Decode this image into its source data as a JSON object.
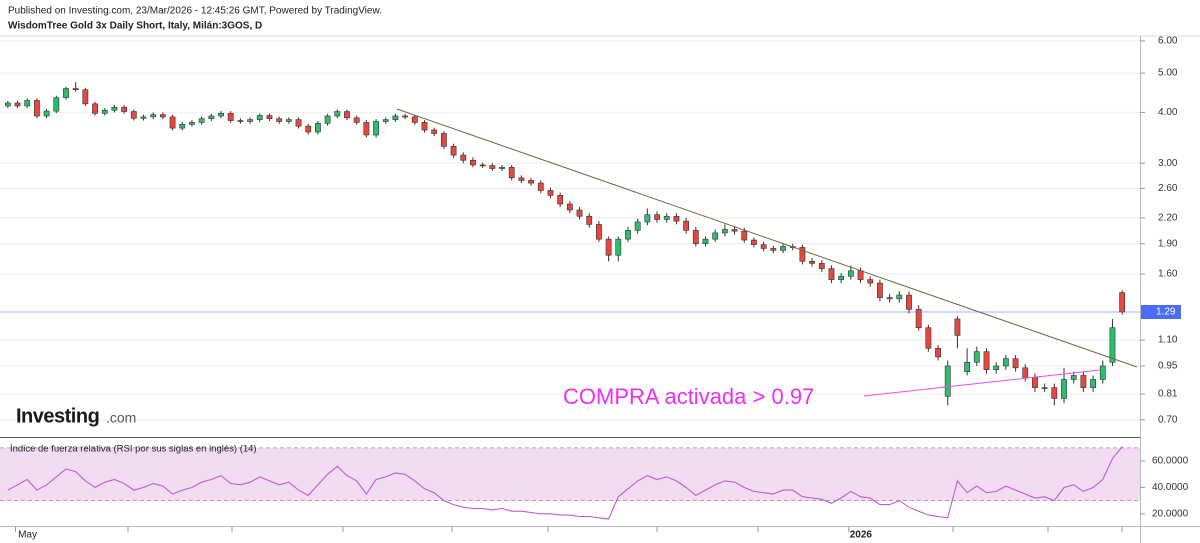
{
  "header": {
    "published": "Published on Investing.com, 23/Mar/2026 - 12:45:26 GMT, Powered by TradingView.",
    "instrument": "WisdomTree Gold 3x Daily Short, Italy, Milán:3GOS, D"
  },
  "logo": {
    "name": "Investing",
    "suffix": ".com"
  },
  "chart_data": [
    {
      "type": "candlestick",
      "categories": [
        null,
        "May",
        null,
        null,
        null,
        null,
        null,
        null,
        null,
        null,
        null,
        null,
        null,
        null,
        null,
        null,
        null,
        null,
        null,
        null,
        null,
        null,
        null,
        null,
        null,
        null,
        null,
        null,
        null,
        null,
        null,
        null,
        null,
        null,
        null,
        null,
        null,
        null,
        null,
        null,
        null,
        null,
        null,
        null,
        null,
        null,
        null,
        null,
        null,
        null,
        null,
        null,
        null,
        null,
        null,
        null,
        null,
        null,
        null,
        null,
        null,
        null,
        null,
        null,
        null,
        null,
        null,
        null,
        null,
        null,
        null,
        null,
        null,
        null,
        null,
        null,
        null,
        null,
        null,
        null,
        null,
        null,
        null,
        null,
        null,
        null,
        null,
        "2026",
        null,
        null,
        null,
        null,
        null,
        null,
        null,
        null,
        null,
        null,
        null,
        null,
        null,
        null,
        null,
        null,
        null,
        null,
        null,
        null,
        null,
        null,
        null,
        null,
        null,
        null,
        null,
        null
      ],
      "open": [
        4.15,
        4.22,
        4.15,
        4.28,
        3.92,
        4.03,
        4.35,
        4.58,
        4.55,
        4.2,
        3.98,
        4.05,
        4.12,
        4.02,
        3.87,
        3.9,
        3.95,
        3.9,
        3.66,
        3.74,
        3.78,
        3.86,
        3.92,
        3.98,
        3.82,
        3.8,
        3.84,
        3.93,
        3.86,
        3.8,
        3.84,
        3.7,
        3.58,
        3.76,
        3.92,
        4.02,
        3.88,
        3.78,
        3.52,
        3.8,
        3.84,
        3.92,
        3.9,
        3.78,
        3.62,
        3.55,
        3.3,
        3.14,
        3.05,
        2.97,
        2.96,
        2.91,
        2.93,
        2.76,
        2.72,
        2.68,
        2.57,
        2.5,
        2.38,
        2.3,
        2.22,
        2.12,
        1.95,
        1.78,
        1.95,
        2.05,
        2.15,
        2.24,
        2.18,
        2.22,
        2.16,
        2.05,
        1.9,
        1.95,
        2.02,
        2.06,
        2.04,
        1.94,
        1.89,
        1.85,
        1.83,
        1.87,
        1.86,
        1.72,
        1.7,
        1.65,
        1.55,
        1.58,
        1.63,
        1.55,
        1.52,
        1.4,
        1.39,
        1.42,
        1.31,
        1.18,
        1.05,
        0.8,
        1.24,
        0.92,
        0.97,
        1.03,
        0.93,
        0.95,
        0.99,
        0.94,
        0.89,
        0.84,
        0.84,
        0.79,
        0.88,
        0.9,
        0.84,
        0.88,
        0.97,
        1.44
      ],
      "high": [
        4.27,
        4.27,
        4.33,
        4.33,
        4.08,
        4.4,
        4.63,
        4.75,
        4.6,
        4.25,
        4.1,
        4.17,
        4.17,
        4.07,
        3.95,
        4.0,
        4.0,
        3.95,
        3.79,
        3.83,
        3.91,
        3.97,
        4.03,
        4.03,
        3.87,
        3.89,
        3.98,
        3.98,
        3.91,
        3.89,
        3.89,
        3.75,
        3.81,
        3.97,
        4.07,
        4.07,
        3.93,
        3.83,
        3.85,
        3.89,
        3.97,
        3.97,
        3.95,
        3.83,
        3.67,
        3.6,
        3.35,
        3.19,
        3.1,
        3.01,
        3.0,
        2.97,
        2.97,
        2.8,
        2.76,
        2.72,
        2.61,
        2.54,
        2.42,
        2.34,
        2.26,
        2.16,
        1.98,
        1.98,
        2.09,
        2.19,
        2.32,
        2.28,
        2.26,
        2.26,
        2.2,
        2.09,
        1.98,
        2.06,
        2.12,
        2.1,
        2.08,
        1.97,
        1.92,
        1.88,
        1.9,
        1.9,
        1.89,
        1.75,
        1.73,
        1.68,
        1.61,
        1.68,
        1.66,
        1.58,
        1.55,
        1.43,
        1.45,
        1.45,
        1.34,
        1.2,
        1.07,
        0.98,
        1.26,
        1.05,
        1.06,
        1.05,
        0.97,
        1.01,
        1.01,
        0.96,
        0.91,
        0.86,
        0.86,
        0.94,
        0.92,
        0.92,
        0.9,
        0.98,
        1.24,
        1.46
      ],
      "low": [
        4.1,
        4.1,
        4.1,
        3.87,
        3.87,
        3.98,
        4.3,
        4.5,
        4.15,
        3.93,
        3.93,
        4.0,
        3.97,
        3.82,
        3.82,
        3.85,
        3.85,
        3.61,
        3.61,
        3.69,
        3.73,
        3.81,
        3.87,
        3.77,
        3.75,
        3.75,
        3.79,
        3.81,
        3.75,
        3.75,
        3.65,
        3.53,
        3.53,
        3.71,
        3.87,
        3.83,
        3.73,
        3.47,
        3.47,
        3.75,
        3.79,
        3.85,
        3.73,
        3.57,
        3.5,
        3.25,
        3.09,
        3.0,
        2.93,
        2.92,
        2.87,
        2.87,
        2.72,
        2.68,
        2.64,
        2.53,
        2.46,
        2.34,
        2.26,
        2.18,
        2.08,
        1.92,
        1.72,
        1.72,
        1.92,
        2.01,
        2.11,
        2.14,
        2.14,
        2.12,
        2.01,
        1.87,
        1.87,
        1.92,
        1.98,
        2.0,
        1.91,
        1.86,
        1.82,
        1.8,
        1.8,
        1.83,
        1.69,
        1.67,
        1.62,
        1.52,
        1.52,
        1.55,
        1.52,
        1.49,
        1.37,
        1.36,
        1.36,
        1.28,
        1.16,
        1.03,
        0.98,
        0.76,
        1.05,
        0.9,
        0.95,
        0.91,
        0.91,
        0.93,
        0.92,
        0.87,
        0.82,
        0.82,
        0.76,
        0.77,
        0.86,
        0.82,
        0.82,
        0.86,
        0.95,
        1.27
      ],
      "close": [
        4.22,
        4.15,
        4.28,
        3.92,
        4.03,
        4.35,
        4.58,
        4.55,
        4.2,
        3.98,
        4.05,
        4.12,
        4.02,
        3.87,
        3.9,
        3.95,
        3.9,
        3.66,
        3.74,
        3.78,
        3.86,
        3.92,
        3.98,
        3.82,
        3.8,
        3.84,
        3.93,
        3.86,
        3.8,
        3.84,
        3.7,
        3.58,
        3.76,
        3.92,
        4.02,
        3.88,
        3.78,
        3.52,
        3.8,
        3.84,
        3.92,
        3.9,
        3.78,
        3.62,
        3.55,
        3.3,
        3.14,
        3.05,
        2.97,
        2.96,
        2.91,
        2.93,
        2.76,
        2.72,
        2.68,
        2.57,
        2.5,
        2.38,
        2.3,
        2.22,
        2.12,
        1.95,
        1.78,
        1.95,
        2.05,
        2.15,
        2.24,
        2.18,
        2.22,
        2.16,
        2.05,
        1.9,
        1.95,
        2.02,
        2.06,
        2.04,
        1.94,
        1.89,
        1.85,
        1.83,
        1.87,
        1.86,
        1.72,
        1.7,
        1.65,
        1.55,
        1.58,
        1.63,
        1.55,
        1.52,
        1.4,
        1.39,
        1.42,
        1.31,
        1.18,
        1.05,
        1.0,
        0.95,
        1.13,
        0.97,
        1.03,
        0.93,
        0.95,
        0.99,
        0.94,
        0.89,
        0.84,
        0.84,
        0.79,
        0.88,
        0.9,
        0.84,
        0.88,
        0.95,
        1.18,
        1.29
      ],
      "up_color": "#2dbd6e",
      "down_color": "#e5483f",
      "log_scale": true,
      "grid": true,
      "ylim": [
        0.635,
        6.17
      ],
      "yticks": [
        {
          "value": 0.7,
          "label": "0.70"
        },
        {
          "value": 0.81,
          "label": "0.81"
        },
        {
          "value": 0.95,
          "label": "0.95"
        },
        {
          "value": 1.1,
          "label": "1.10"
        },
        {
          "value": 1.6,
          "label": "1.60"
        },
        {
          "value": 1.9,
          "label": "1.90"
        },
        {
          "value": 2.2,
          "label": "2.20"
        },
        {
          "value": 2.6,
          "label": "2.60"
        },
        {
          "value": 3,
          "label": "3.00"
        },
        {
          "value": 4,
          "label": "4.00"
        },
        {
          "value": 5,
          "label": "5.00"
        },
        {
          "value": 6,
          "label": "6.00"
        }
      ],
      "last_price": {
        "value": 1.29,
        "label": "1.29"
      },
      "last_price_color": "#4a6cf7",
      "annotation": "COMPRA activada > 0.97",
      "annotation_color": "#f02ef0"
    },
    {
      "type": "line",
      "title": "Índice de fuerza relativa (RSI por sus siglas en inglés) (14)",
      "values": [
        38,
        42,
        46,
        38,
        42,
        48,
        54,
        52,
        45,
        40,
        44,
        46,
        43,
        38,
        40,
        43,
        41,
        35,
        38,
        40,
        44,
        46,
        49,
        43,
        42,
        44,
        48,
        45,
        42,
        44,
        38,
        34,
        42,
        50,
        56,
        49,
        45,
        35,
        46,
        48,
        51,
        50,
        45,
        39,
        36,
        30,
        27,
        25,
        24,
        24,
        23,
        24,
        22,
        22,
        21,
        20,
        20,
        19,
        19,
        18,
        18,
        17,
        16,
        33,
        39,
        45,
        49,
        46,
        48,
        45,
        40,
        34,
        38,
        42,
        45,
        44,
        40,
        37,
        36,
        35,
        38,
        38,
        33,
        32,
        31,
        28,
        32,
        37,
        33,
        32,
        27,
        27,
        30,
        25,
        22,
        19,
        18,
        17,
        45,
        36,
        41,
        36,
        37,
        41,
        38,
        35,
        32,
        33,
        30,
        40,
        42,
        37,
        40,
        46,
        62,
        71
      ],
      "color": "#c05ad0",
      "bands": [
        30,
        70
      ],
      "band_color": "#f1dcf1",
      "ylim": [
        10,
        76
      ],
      "yticks": [
        {
          "value": 20,
          "label": "20.0000"
        },
        {
          "value": 40,
          "label": "40.0000"
        },
        {
          "value": 60,
          "label": "60.0000"
        }
      ]
    }
  ]
}
